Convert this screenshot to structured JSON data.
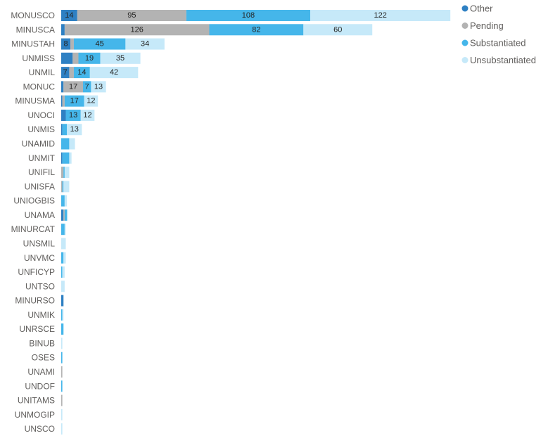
{
  "chart_data": {
    "type": "bar",
    "orientation": "horizontal",
    "stacked": true,
    "categories": [
      "MONUSCO",
      "MINUSCA",
      "MINUSTAH",
      "UNMISS",
      "UNMIL",
      "MONUC",
      "MINUSMA",
      "UNOCI",
      "UNMIS",
      "UNAMID",
      "UNMIT",
      "UNIFIL",
      "UNISFA",
      "UNIOGBIS",
      "UNAMA",
      "MINURCAT",
      "UNSMIL",
      "UNVMC",
      "UNFICYP",
      "UNTSO",
      "MINURSO",
      "UNMIK",
      "UNRSCE",
      "BINUB",
      "OSES",
      "UNAMI",
      "UNDOF",
      "UNITAMS",
      "UNMOGIP",
      "UNSCO"
    ],
    "series": [
      {
        "name": "Other",
        "color": "#2e80c3",
        "values": [
          14,
          3,
          8,
          10,
          7,
          2,
          1,
          4,
          1,
          0,
          1,
          0,
          0,
          0,
          2,
          0,
          0,
          0,
          0,
          0,
          2,
          0,
          0,
          0,
          0,
          0,
          0,
          0,
          0,
          0
        ],
        "labels": [
          "14",
          "",
          "8",
          "",
          "7",
          "",
          "",
          "",
          "",
          "",
          "",
          "",
          "",
          "",
          "",
          "",
          "",
          "",
          "",
          "",
          "",
          "",
          "",
          "",
          "",
          "",
          "",
          "",
          "",
          ""
        ]
      },
      {
        "name": "Pending",
        "color": "#b3b3b3",
        "values": [
          95,
          126,
          3,
          5,
          4,
          17,
          2,
          0,
          0,
          0,
          0,
          2,
          1,
          0,
          1,
          0,
          0,
          0,
          0,
          0,
          0,
          0,
          0,
          0,
          0,
          1,
          0,
          1,
          0,
          0
        ],
        "labels": [
          "95",
          "126",
          "",
          "",
          "",
          "17",
          "",
          "",
          "",
          "",
          "",
          "",
          "",
          "",
          "",
          "",
          "",
          "",
          "",
          "",
          "",
          "",
          "",
          "",
          "",
          "",
          "",
          "",
          "",
          ""
        ]
      },
      {
        "name": "Substantiated",
        "color": "#45b6ea",
        "values": [
          108,
          82,
          45,
          19,
          14,
          7,
          17,
          13,
          4,
          7,
          6,
          1,
          1,
          3,
          2,
          3,
          0,
          2,
          1,
          0,
          0,
          1,
          2,
          0,
          1,
          0,
          1,
          0,
          0,
          0
        ],
        "labels": [
          "108",
          "82",
          "45",
          "19",
          "14",
          "7",
          "17",
          "13",
          "",
          "",
          "",
          "",
          "",
          "",
          "",
          "",
          "",
          "",
          "",
          "",
          "",
          "",
          "",
          "",
          "",
          "",
          "",
          "",
          "",
          ""
        ]
      },
      {
        "name": "Unsubstantiated",
        "color": "#c6e9f9",
        "values": [
          122,
          60,
          34,
          35,
          42,
          13,
          12,
          12,
          13,
          5,
          2,
          4,
          5,
          2,
          1,
          1,
          4,
          2,
          2,
          3,
          0,
          1,
          0,
          1,
          0,
          0,
          0,
          0,
          1,
          1
        ],
        "labels": [
          "122",
          "60",
          "34",
          "35",
          "42",
          "13",
          "12",
          "12",
          "13",
          "",
          "",
          "",
          "",
          "",
          "",
          "",
          "",
          "",
          "",
          "",
          "",
          "",
          "",
          "",
          "",
          "",
          "",
          "",
          "",
          ""
        ]
      }
    ],
    "legend": "top-right",
    "grid": false
  }
}
